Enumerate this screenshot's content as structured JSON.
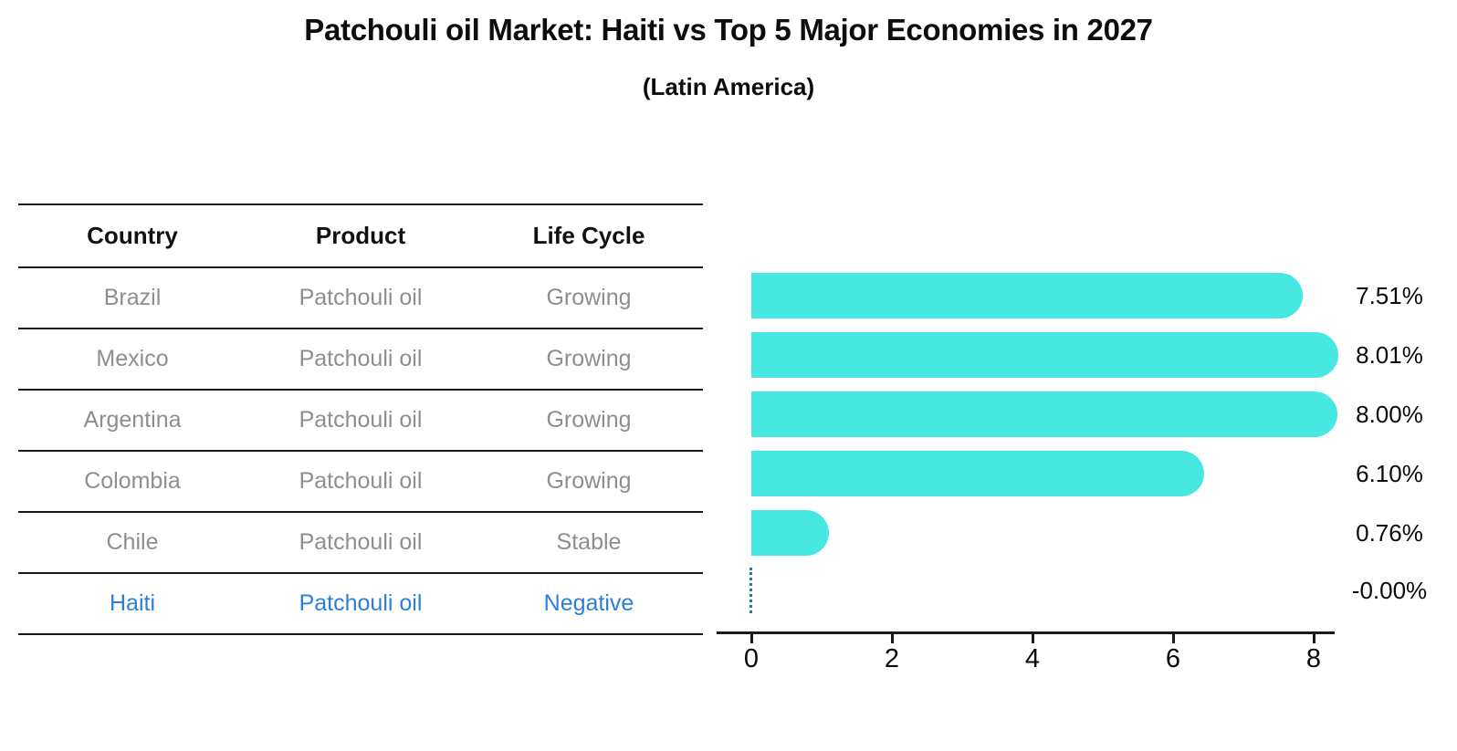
{
  "title": "Patchouli oil Market: Haiti vs Top 5 Major Economies in 2027",
  "subtitle": "(Latin America)",
  "table": {
    "headers": [
      "Country",
      "Product",
      "Life Cycle"
    ],
    "rows": [
      {
        "country": "Brazil",
        "product": "Patchouli oil",
        "life_cycle": "Growing",
        "highlight": false
      },
      {
        "country": "Mexico",
        "product": "Patchouli oil",
        "life_cycle": "Growing",
        "highlight": false
      },
      {
        "country": "Argentina",
        "product": "Patchouli oil",
        "life_cycle": "Growing",
        "highlight": false
      },
      {
        "country": "Colombia",
        "product": "Patchouli oil",
        "life_cycle": "Growing",
        "highlight": false
      },
      {
        "country": "Chile",
        "product": "Patchouli oil",
        "life_cycle": "Stable",
        "highlight": false
      },
      {
        "country": "Haiti",
        "product": "Patchouli oil",
        "life_cycle": "Negative",
        "highlight": true
      }
    ]
  },
  "chart_data": {
    "type": "bar",
    "orientation": "horizontal",
    "categories": [
      "Brazil",
      "Mexico",
      "Argentina",
      "Colombia",
      "Chile",
      "Haiti"
    ],
    "values": [
      7.51,
      8.01,
      8.0,
      6.1,
      0.76,
      -0.0
    ],
    "value_labels": [
      "7.51%",
      "8.01%",
      "8.00%",
      "6.10%",
      "0.76%",
      "-0.00%"
    ],
    "x_ticks": [
      0,
      2,
      4,
      6,
      8
    ],
    "xlim": [
      0,
      8.4
    ],
    "grid": false,
    "legend": "none",
    "bar_color": "#47E7E2",
    "highlight_text_color": "#2B7FD9",
    "zero_marker_color": "#2E6FBE",
    "axis_color": "#1a1a1a",
    "label_color": "#0a0a0a"
  }
}
